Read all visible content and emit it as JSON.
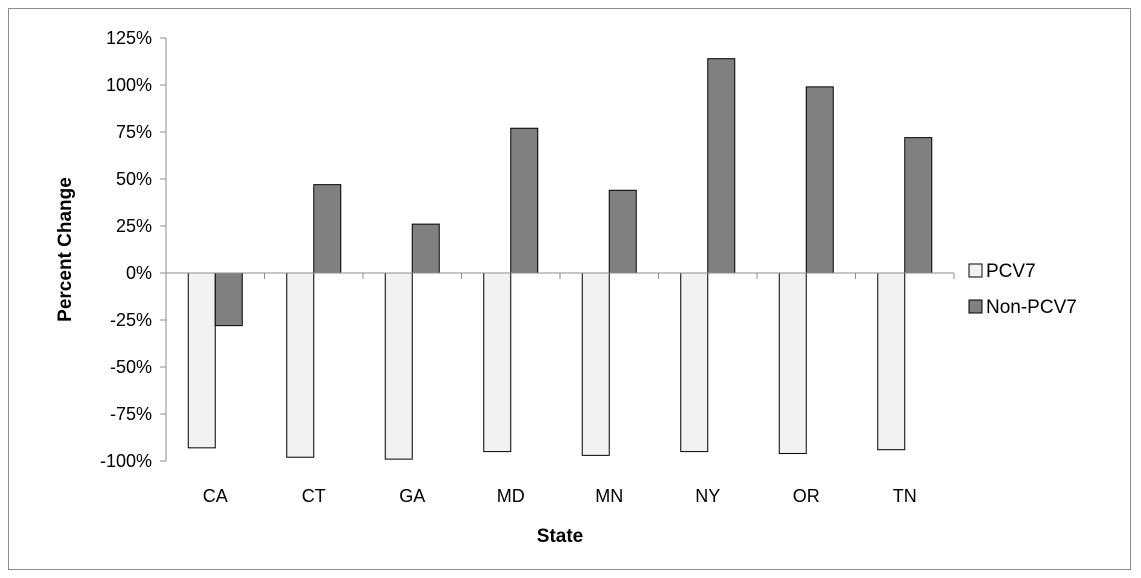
{
  "chart_data": {
    "type": "bar",
    "categories": [
      "CA",
      "CT",
      "GA",
      "MD",
      "MN",
      "NY",
      "OR",
      "TN"
    ],
    "series": [
      {
        "name": "PCV7",
        "values": [
          -93,
          -98,
          -99,
          -95,
          -97,
          -95,
          -96,
          -94
        ],
        "color": "#f2f2f2"
      },
      {
        "name": "Non-PCV7",
        "values": [
          -28,
          47,
          26,
          77,
          44,
          114,
          99,
          72
        ],
        "color": "#808080"
      }
    ],
    "xlabel": "State",
    "ylabel": "Percent Change",
    "ylim": [
      -100,
      125
    ],
    "yticks": [
      -100,
      -75,
      -50,
      -25,
      0,
      25,
      50,
      75,
      100,
      125
    ],
    "ytick_labels": [
      "-100%",
      "-75%",
      "-50%",
      "-25%",
      "0%",
      "25%",
      "50%",
      "75%",
      "100%",
      "125%"
    ],
    "grid": false,
    "legend_position": "right"
  }
}
